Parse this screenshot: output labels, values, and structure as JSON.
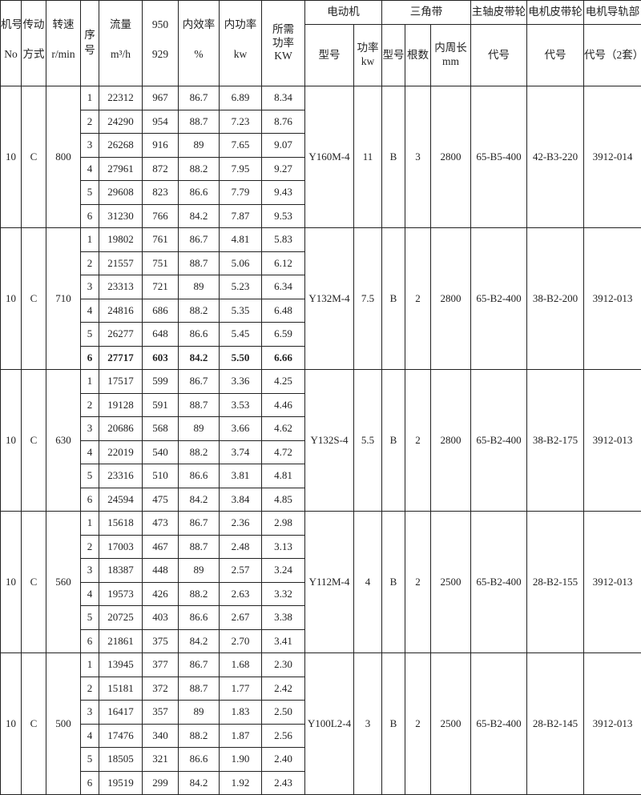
{
  "header": {
    "machine_no": [
      "机号",
      "No"
    ],
    "drive": [
      "传动",
      "方式"
    ],
    "speed": [
      "转速",
      "r/min"
    ],
    "seq": "序号",
    "flow": [
      "流量",
      "m³/h"
    ],
    "pressure": [
      "950",
      "929"
    ],
    "efficiency": [
      "内效率",
      "%"
    ],
    "power": [
      "内功率",
      "kw"
    ],
    "required_power": [
      "所需",
      "功率",
      "KW"
    ],
    "motor": {
      "group": "电动机",
      "model": "型号",
      "power": [
        "功率",
        "kw"
      ]
    },
    "vbelt": {
      "group": "三角带",
      "model": "型号",
      "count": "根数",
      "length": [
        "内周长",
        "mm"
      ]
    },
    "spindle_pulley": {
      "group": "主轴皮带轮",
      "code": "代号"
    },
    "motor_pulley": {
      "group": "电机皮带轮",
      "code": "代号"
    },
    "motor_rail": {
      "group": "电机导轨部",
      "code": "代号（2套）"
    }
  },
  "groups": [
    {
      "no": "10",
      "drive": "C",
      "speed": "800",
      "motor_model": "Y160M-4",
      "motor_power": "11",
      "belt_model": "B",
      "belt_count": "3",
      "belt_length": "2800",
      "spindle_pulley": "65-B5-400",
      "motor_pulley": "42-B3-220",
      "rail": "3912-014",
      "rows": [
        [
          "1",
          "22312",
          "967",
          "86.7",
          "6.89",
          "8.34"
        ],
        [
          "2",
          "24290",
          "954",
          "88.7",
          "7.23",
          "8.76"
        ],
        [
          "3",
          "26268",
          "916",
          "89",
          "7.65",
          "9.07"
        ],
        [
          "4",
          "27961",
          "872",
          "88.2",
          "7.95",
          "9.27"
        ],
        [
          "5",
          "29608",
          "823",
          "86.6",
          "7.79",
          "9.43"
        ],
        [
          "6",
          "31230",
          "766",
          "84.2",
          "7.87",
          "9.53"
        ]
      ]
    },
    {
      "no": "10",
      "drive": "C",
      "speed": "710",
      "motor_model": "Y132M-4",
      "motor_power": "7.5",
      "belt_model": "B",
      "belt_count": "2",
      "belt_length": "2800",
      "spindle_pulley": "65-B2-400",
      "motor_pulley": "38-B2-200",
      "rail": "3912-013",
      "rows": [
        [
          "1",
          "19802",
          "761",
          "86.7",
          "4.81",
          "5.83"
        ],
        [
          "2",
          "21557",
          "751",
          "88.7",
          "5.06",
          "6.12"
        ],
        [
          "3",
          "23313",
          "721",
          "89",
          "5.23",
          "6.34"
        ],
        [
          "4",
          "24816",
          "686",
          "88.2",
          "5.35",
          "6.48"
        ],
        [
          "5",
          "26277",
          "648",
          "86.6",
          "5.45",
          "6.59"
        ],
        [
          "6",
          "27717",
          "603",
          "84.2",
          "5.50",
          "6.66"
        ]
      ],
      "bold_row": 5
    },
    {
      "no": "10",
      "drive": "C",
      "speed": "630",
      "motor_model": "Y132S-4",
      "motor_power": "5.5",
      "belt_model": "B",
      "belt_count": "2",
      "belt_length": "2800",
      "spindle_pulley": "65-B2-400",
      "motor_pulley": "38-B2-175",
      "rail": "3912-013",
      "rows": [
        [
          "1",
          "17517",
          "599",
          "86.7",
          "3.36",
          "4.25"
        ],
        [
          "2",
          "19128",
          "591",
          "88.7",
          "3.53",
          "4.46"
        ],
        [
          "3",
          "20686",
          "568",
          "89",
          "3.66",
          "4.62"
        ],
        [
          "4",
          "22019",
          "540",
          "88.2",
          "3.74",
          "4.72"
        ],
        [
          "5",
          "23316",
          "510",
          "86.6",
          "3.81",
          "4.81"
        ],
        [
          "6",
          "24594",
          "475",
          "84.2",
          "3.84",
          "4.85"
        ]
      ]
    },
    {
      "no": "10",
      "drive": "C",
      "speed": "560",
      "motor_model": "Y112M-4",
      "motor_power": "4",
      "belt_model": "B",
      "belt_count": "2",
      "belt_length": "2500",
      "spindle_pulley": "65-B2-400",
      "motor_pulley": "28-B2-155",
      "rail": "3912-013",
      "rows": [
        [
          "1",
          "15618",
          "473",
          "86.7",
          "2.36",
          "2.98"
        ],
        [
          "2",
          "17003",
          "467",
          "88.7",
          "2.48",
          "3.13"
        ],
        [
          "3",
          "18387",
          "448",
          "89",
          "2.57",
          "3.24"
        ],
        [
          "4",
          "19573",
          "426",
          "88.2",
          "2.63",
          "3.32"
        ],
        [
          "5",
          "20725",
          "403",
          "86.6",
          "2.67",
          "3.38"
        ],
        [
          "6",
          "21861",
          "375",
          "84.2",
          "2.70",
          "3.41"
        ]
      ]
    },
    {
      "no": "10",
      "drive": "C",
      "speed": "500",
      "motor_model": "Y100L2-4",
      "motor_power": "3",
      "belt_model": "B",
      "belt_count": "2",
      "belt_length": "2500",
      "spindle_pulley": "65-B2-400",
      "motor_pulley": "28-B2-145",
      "rail": "3912-013",
      "rows": [
        [
          "1",
          "13945",
          "377",
          "86.7",
          "1.68",
          "2.30"
        ],
        [
          "2",
          "15181",
          "372",
          "88.7",
          "1.77",
          "2.42"
        ],
        [
          "3",
          "16417",
          "357",
          "89",
          "1.83",
          "2.50"
        ],
        [
          "4",
          "17476",
          "340",
          "88.2",
          "1.87",
          "2.56"
        ],
        [
          "5",
          "18505",
          "321",
          "86.6",
          "1.90",
          "2.40"
        ],
        [
          "6",
          "19519",
          "299",
          "84.2",
          "1.92",
          "2.43"
        ]
      ]
    }
  ]
}
